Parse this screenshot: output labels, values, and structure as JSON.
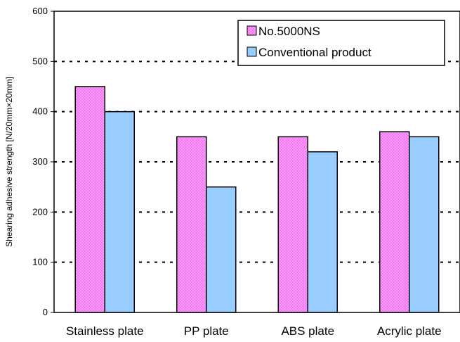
{
  "chart_data": {
    "type": "bar",
    "categories": [
      "Stainless plate",
      "PP plate",
      "ABS plate",
      "Acrylic plate"
    ],
    "series": [
      {
        "name": "No.5000NS",
        "values": [
          450,
          350,
          350,
          360
        ],
        "color": "#ff99ff",
        "pattern": "checker"
      },
      {
        "name": "Conventional product",
        "values": [
          400,
          250,
          320,
          350
        ],
        "color": "#99ccff"
      }
    ],
    "ylabel": "Shearing adhesive strength [N/20mm×20mm]",
    "ylim": [
      0,
      600
    ],
    "yticks": [
      0,
      100,
      200,
      300,
      400,
      500,
      600
    ],
    "grid": "dashed horizontal",
    "legend": "top-right"
  }
}
